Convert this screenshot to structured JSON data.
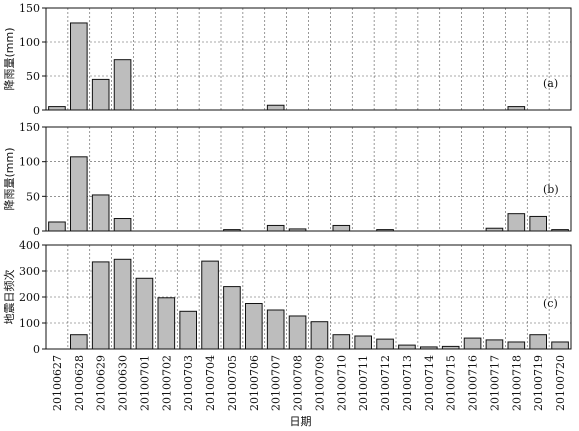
{
  "chart_data": [
    {
      "type": "bar",
      "panel_label": "(a)",
      "ylabel": "降雨量(mm)",
      "ylim": [
        0,
        150
      ],
      "yticks": [
        0,
        50,
        100,
        150
      ],
      "categories": [
        "20100627",
        "20100628",
        "20100629",
        "20100630",
        "20100701",
        "20100702",
        "20100703",
        "20100704",
        "20100705",
        "20100706",
        "20100707",
        "20100708",
        "20100709",
        "20100710",
        "20100711",
        "20100712",
        "20100713",
        "20100714",
        "20100715",
        "20100716",
        "20100717",
        "20100718",
        "20100719",
        "20100720"
      ],
      "values": [
        5,
        128,
        45,
        74,
        0,
        0,
        0,
        0,
        0,
        0,
        7,
        0,
        0,
        0,
        0,
        0,
        0,
        0,
        0,
        0,
        0,
        5,
        0,
        0
      ],
      "grid": true
    },
    {
      "type": "bar",
      "panel_label": "(b)",
      "ylabel": "降雨量(mm)",
      "ylim": [
        0,
        150
      ],
      "yticks": [
        0,
        50,
        100,
        150
      ],
      "categories": [
        "20100627",
        "20100628",
        "20100629",
        "20100630",
        "20100701",
        "20100702",
        "20100703",
        "20100704",
        "20100705",
        "20100706",
        "20100707",
        "20100708",
        "20100709",
        "20100710",
        "20100711",
        "20100712",
        "20100713",
        "20100714",
        "20100715",
        "20100716",
        "20100717",
        "20100718",
        "20100719",
        "20100720"
      ],
      "values": [
        13,
        107,
        52,
        18,
        0,
        0,
        0,
        0,
        2,
        0,
        8,
        3,
        0,
        8,
        0,
        2,
        0,
        0,
        0,
        0,
        4,
        25,
        21,
        2
      ],
      "grid": true
    },
    {
      "type": "bar",
      "panel_label": "(c)",
      "ylabel": "地震日频次",
      "xlabel": "日期",
      "ylim": [
        0,
        400
      ],
      "yticks": [
        0,
        100,
        200,
        300,
        400
      ],
      "categories": [
        "20100627",
        "20100628",
        "20100629",
        "20100630",
        "20100701",
        "20100702",
        "20100703",
        "20100704",
        "20100705",
        "20100706",
        "20100707",
        "20100708",
        "20100709",
        "20100710",
        "20100711",
        "20100712",
        "20100713",
        "20100714",
        "20100715",
        "20100716",
        "20100717",
        "20100718",
        "20100719",
        "20100720"
      ],
      "values": [
        0,
        55,
        335,
        345,
        272,
        197,
        145,
        338,
        240,
        175,
        150,
        127,
        105,
        55,
        50,
        38,
        15,
        8,
        10,
        42,
        35,
        27,
        55,
        27
      ],
      "grid": true
    }
  ]
}
